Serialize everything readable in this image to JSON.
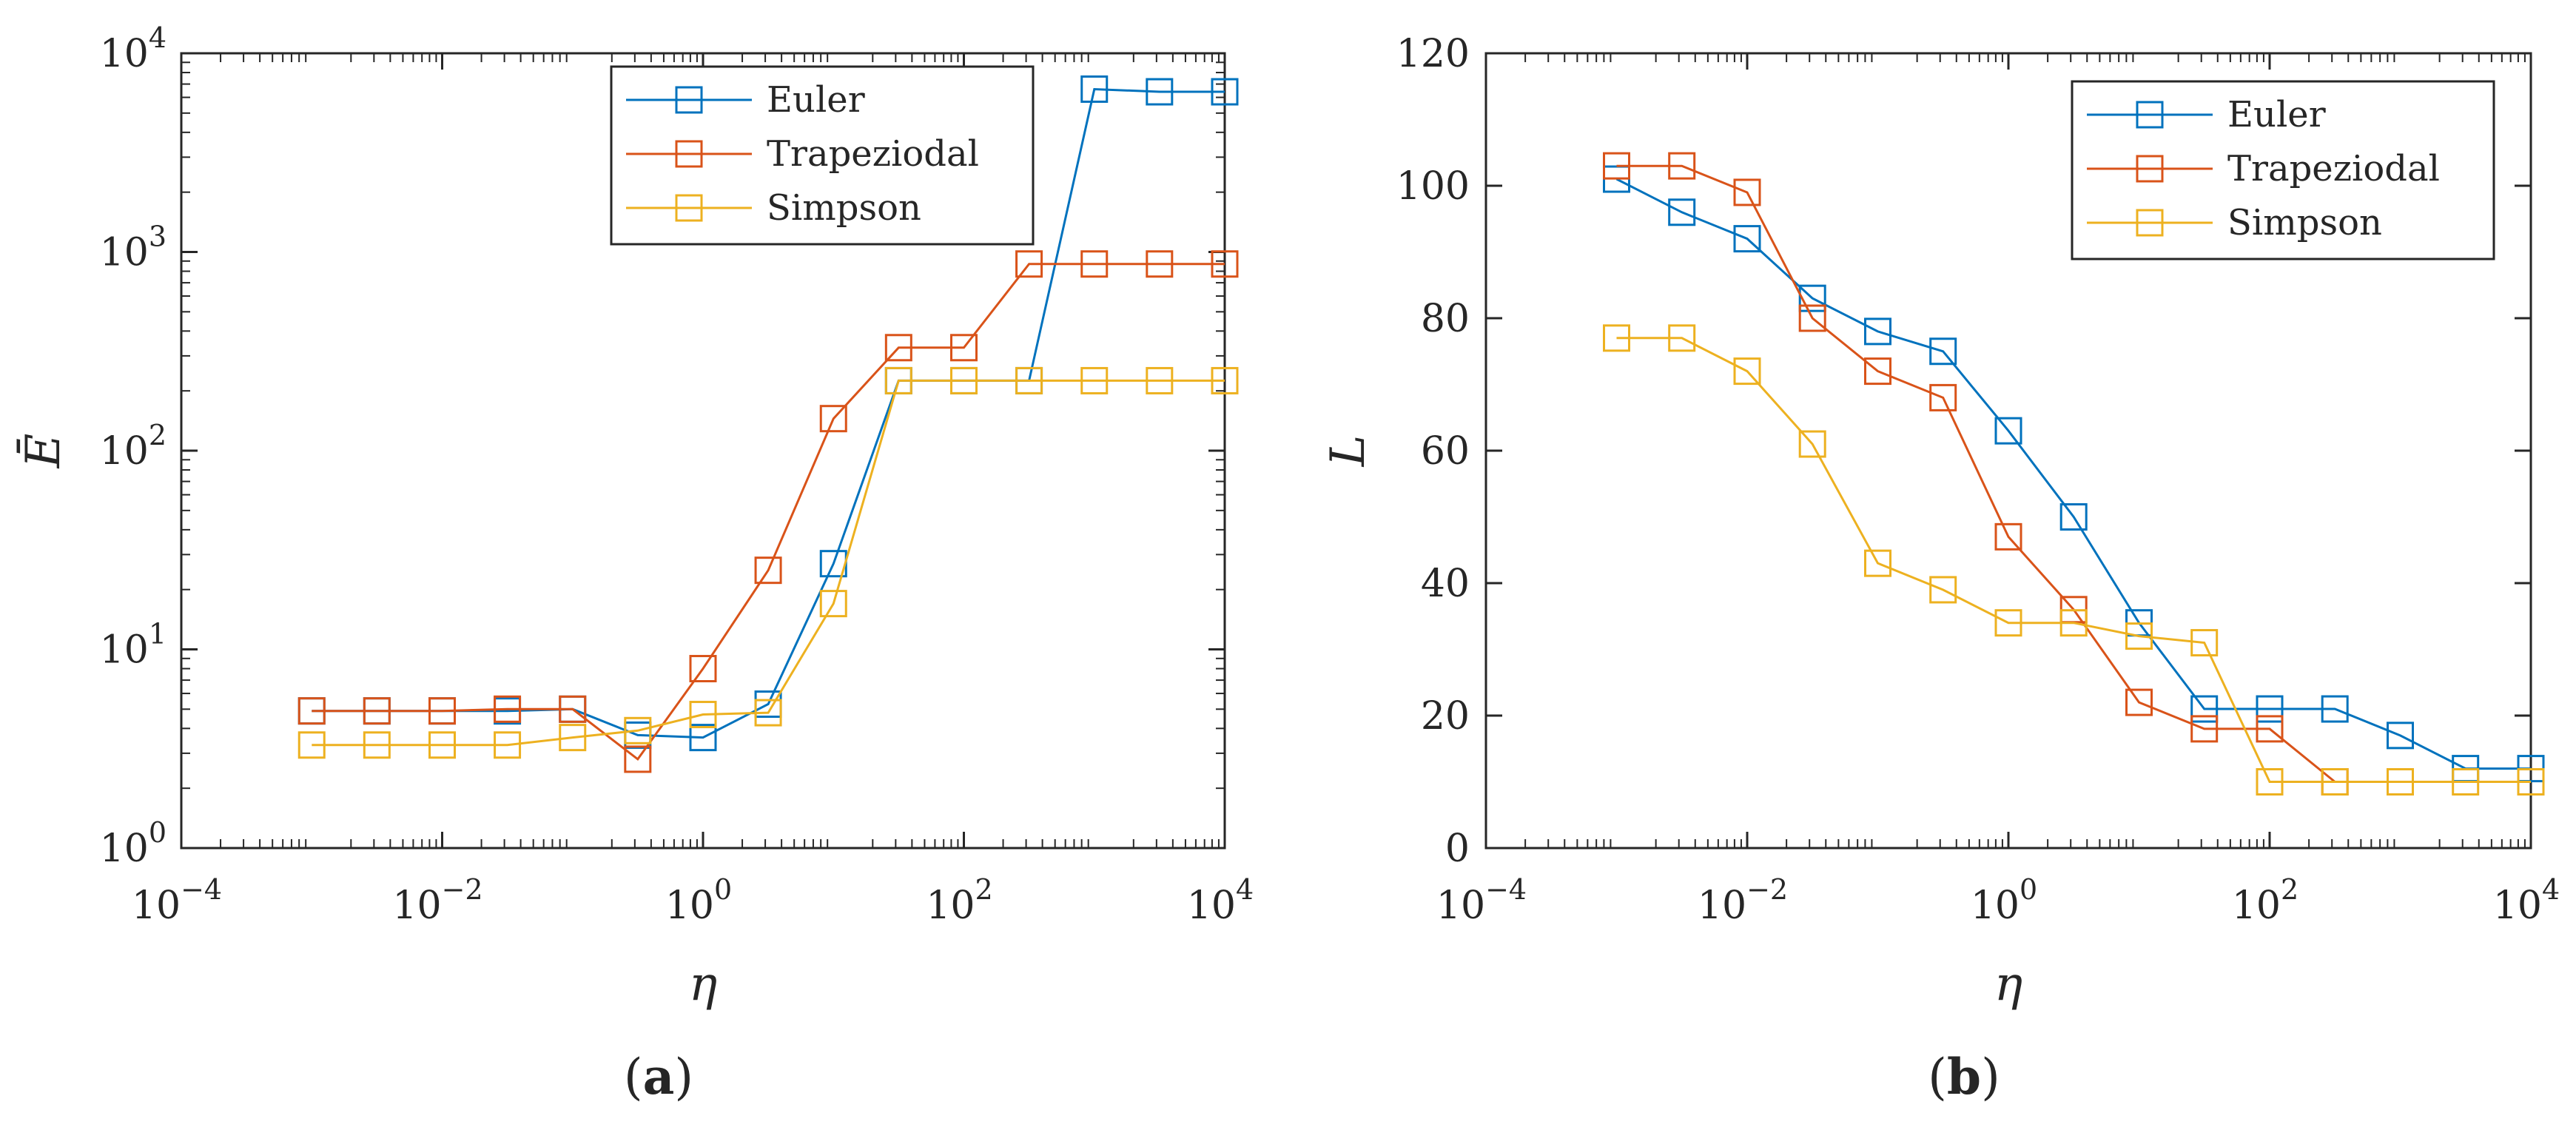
{
  "chart_data": [
    {
      "type": "line",
      "panel_label": "(a)",
      "panel_letter": "a",
      "xlabel": "η",
      "ylabel": "Ē",
      "x_scale": "log",
      "y_scale": "log",
      "xlim": [
        0.0001,
        10000
      ],
      "ylim": [
        1,
        10000
      ],
      "x_tick_values": [
        0.0001,
        0.01,
        1,
        100,
        10000
      ],
      "x_tick_mantissa": [
        "10",
        "10",
        "10",
        "10",
        "10"
      ],
      "x_tick_exponent": [
        "−4",
        "−2",
        "0",
        "2",
        "4"
      ],
      "y_tick_values": [
        1,
        10,
        100,
        1000,
        10000
      ],
      "y_tick_mantissa": [
        "10",
        "10",
        "10",
        "10",
        "10"
      ],
      "y_tick_exponent": [
        "0",
        "1",
        "2",
        "3",
        "4"
      ],
      "grid": false,
      "legend_position": "top-right",
      "x": [
        0.001,
        0.00316,
        0.01,
        0.0316,
        0.1,
        0.316,
        1,
        3.16,
        10,
        31.6,
        100,
        316,
        1000,
        3160,
        10000
      ],
      "series": [
        {
          "name": "Euler",
          "color": "#0072BD",
          "values": [
            4.9,
            4.9,
            4.9,
            4.9,
            5.0,
            3.7,
            3.6,
            5.3,
            27,
            225,
            225,
            225,
            6600,
            6400,
            6400
          ]
        },
        {
          "name": "Trapeziodal",
          "color": "#D95319",
          "values": [
            4.9,
            4.9,
            4.9,
            5.0,
            5.0,
            2.8,
            8.0,
            25,
            145,
            330,
            330,
            870,
            870,
            870,
            870
          ]
        },
        {
          "name": "Simpson",
          "color": "#EDB120",
          "values": [
            3.3,
            3.3,
            3.3,
            3.3,
            3.6,
            3.9,
            4.7,
            4.8,
            17,
            225,
            225,
            225,
            225,
            225,
            225
          ]
        }
      ]
    },
    {
      "type": "line",
      "panel_label": "(b)",
      "panel_letter": "b",
      "xlabel": "η",
      "ylabel": "L",
      "x_scale": "log",
      "y_scale": "linear",
      "xlim": [
        0.0001,
        10000
      ],
      "ylim": [
        0,
        120
      ],
      "x_tick_values": [
        0.0001,
        0.01,
        1,
        100,
        10000
      ],
      "x_tick_mantissa": [
        "10",
        "10",
        "10",
        "10",
        "10"
      ],
      "x_tick_exponent": [
        "−4",
        "−2",
        "0",
        "2",
        "4"
      ],
      "y_tick_values": [
        0,
        20,
        40,
        60,
        80,
        100,
        120
      ],
      "y_tick_labels": [
        "0",
        "20",
        "40",
        "60",
        "80",
        "100",
        "120"
      ],
      "grid": false,
      "legend_position": "top-right",
      "x": [
        0.001,
        0.00316,
        0.01,
        0.0316,
        0.1,
        0.316,
        1,
        3.16,
        10,
        31.6,
        100,
        316,
        1000,
        3160,
        10000
      ],
      "series": [
        {
          "name": "Euler",
          "color": "#0072BD",
          "values": [
            101,
            96,
            92,
            83,
            78,
            75,
            63,
            50,
            34,
            21,
            21,
            21,
            17,
            12,
            12
          ]
        },
        {
          "name": "Trapeziodal",
          "color": "#D95319",
          "values": [
            103,
            103,
            99,
            80,
            72,
            68,
            47,
            36,
            22,
            18,
            18,
            10,
            null,
            null,
            null
          ]
        },
        {
          "name": "Simpson",
          "color": "#EDB120",
          "values": [
            77,
            77,
            72,
            61,
            43,
            39,
            34,
            34,
            32,
            31,
            10,
            10,
            10,
            10,
            10
          ]
        }
      ]
    }
  ]
}
